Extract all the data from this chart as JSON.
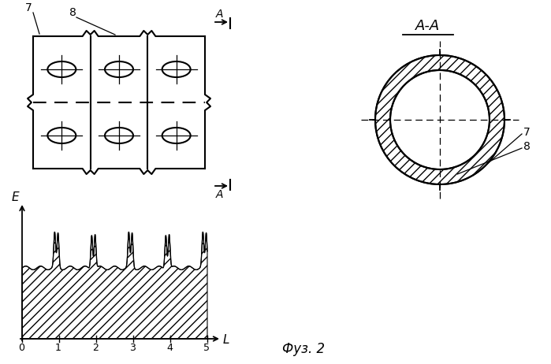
{
  "fig_label": "Фуз. 2",
  "aa_label": "A-A",
  "label_7_grid": "7",
  "label_8_grid": "8",
  "label_A_top": "A",
  "label_A_bot": "A",
  "label_7_circle": "7",
  "label_8_circle": "8",
  "graph_xlabel": "L",
  "graph_ylabel": "E",
  "graph_xticks": [
    0,
    1,
    2,
    3,
    4,
    5
  ],
  "bg_color": "#ffffff",
  "line_color": "#000000"
}
